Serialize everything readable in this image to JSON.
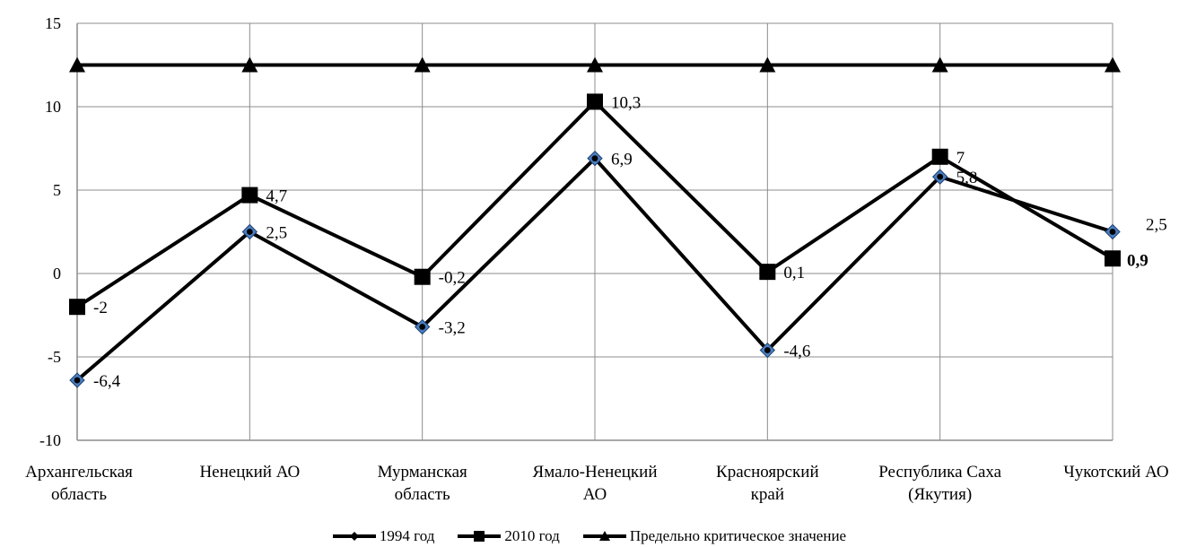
{
  "chart_data": {
    "type": "line",
    "categories": [
      "Архангельская\nобласть",
      "Ненецкий АО",
      "Мурманская\nобласть",
      "Ямало-Ненецкий\nАО",
      "Красноярский\nкрай",
      "Республика Саха\n(Якутия)",
      "Чукотский АО"
    ],
    "ylim": [
      -10,
      15
    ],
    "yticks": [
      -10,
      -5,
      0,
      5,
      10,
      15
    ],
    "ytick_labels": [
      "-10",
      "-5",
      "0",
      "5",
      "10",
      "15"
    ],
    "grid": "vertical and horizontal",
    "legend_position": "bottom",
    "series": [
      {
        "name": "1994 год",
        "marker": "diamond",
        "color": "#000000",
        "marker_fill": "#4a7fc0",
        "values": [
          -6.4,
          2.5,
          -3.2,
          6.9,
          -4.6,
          5.8,
          2.5
        ],
        "labels": [
          "-6,4",
          "2,5",
          "-3,2",
          "6,9",
          "-4,6",
          "5,8",
          "2,5"
        ]
      },
      {
        "name": "2010 год",
        "marker": "square",
        "color": "#000000",
        "values": [
          -2,
          4.7,
          -0.2,
          10.3,
          0.1,
          7,
          0.9
        ],
        "labels": [
          "-2",
          "4,7",
          "-0,2",
          "10,3",
          "0,1",
          "7",
          "0,9"
        ]
      },
      {
        "name": "Предельно критическое значение",
        "marker": "triangle",
        "color": "#000000",
        "values": [
          12.5,
          12.5,
          12.5,
          12.5,
          12.5,
          12.5,
          12.5
        ],
        "labels": []
      }
    ]
  }
}
